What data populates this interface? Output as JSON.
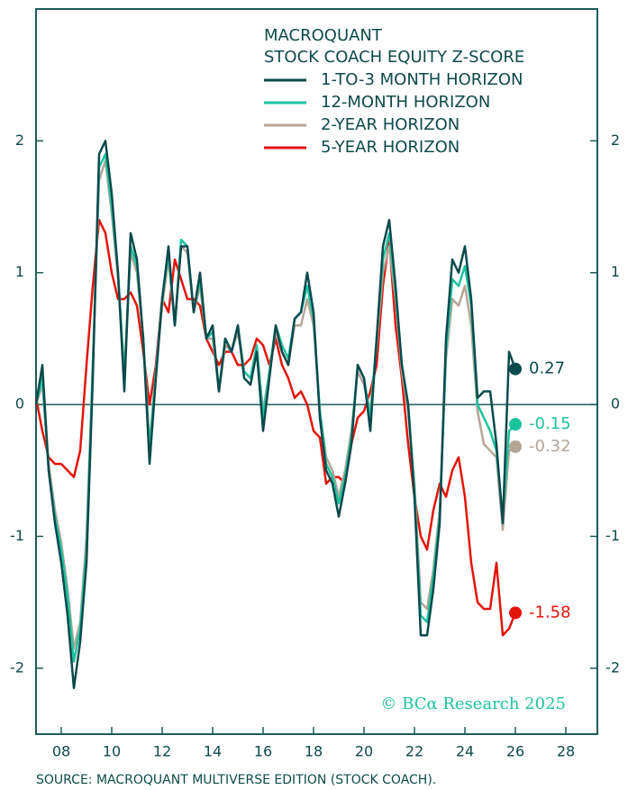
{
  "chart_data": {
    "type": "line",
    "title": [
      "MACROQUANT",
      "STOCK COACH EQUITY Z-SCORE"
    ],
    "source": "SOURCE: MACROQUANT MULTIVERSE EDITION (STOCK COACH).",
    "watermark": "© BCα Research 2025",
    "xlim": [
      2007,
      2029.25
    ],
    "xticks": [
      {
        "value": 2008,
        "label": "08"
      },
      {
        "value": 2010,
        "label": "10"
      },
      {
        "value": 2012,
        "label": "12"
      },
      {
        "value": 2014,
        "label": "14"
      },
      {
        "value": 2016,
        "label": "16"
      },
      {
        "value": 2018,
        "label": "18"
      },
      {
        "value": 2020,
        "label": "20"
      },
      {
        "value": 2022,
        "label": "22"
      },
      {
        "value": 2024,
        "label": "24"
      },
      {
        "value": 2026,
        "label": "26"
      },
      {
        "value": 2028,
        "label": "28"
      }
    ],
    "ylim": [
      -2.5,
      3
    ],
    "yticks": [
      -2,
      -1,
      0,
      1,
      2
    ],
    "y2lim": [
      -2.5,
      3
    ],
    "y2ticks": [
      -2,
      -1,
      0,
      1,
      2
    ],
    "zero_line": true,
    "legend": "top-right",
    "x": [
      2007,
      2007.25,
      2007.5,
      2007.75,
      2008,
      2008.25,
      2008.5,
      2008.75,
      2009,
      2009.25,
      2009.5,
      2009.75,
      2010,
      2010.25,
      2010.5,
      2010.75,
      2011,
      2011.25,
      2011.5,
      2011.75,
      2012,
      2012.25,
      2012.5,
      2012.75,
      2013,
      2013.25,
      2013.5,
      2013.75,
      2014,
      2014.25,
      2014.5,
      2014.75,
      2015,
      2015.25,
      2015.5,
      2015.75,
      2016,
      2016.25,
      2016.5,
      2016.75,
      2017,
      2017.25,
      2017.5,
      2017.75,
      2018,
      2018.25,
      2018.5,
      2018.75,
      2019,
      2019.25,
      2019.5,
      2019.75,
      2020,
      2020.25,
      2020.5,
      2020.75,
      2021,
      2021.25,
      2021.5,
      2021.75,
      2022,
      2022.25,
      2022.5,
      2022.75,
      2023,
      2023.25,
      2023.5,
      2023.75,
      2024,
      2024.25,
      2024.5,
      2024.75,
      2025,
      2025.25,
      2025.5,
      2025.75,
      2026
    ],
    "series": [
      {
        "name": "1-TO-3 MONTH HORIZON",
        "color": "#0b4a4c",
        "values": [
          0.0,
          0.3,
          -0.5,
          -0.9,
          -1.2,
          -1.6,
          -2.15,
          -1.8,
          -1.2,
          0.2,
          1.9,
          2.0,
          1.6,
          1.0,
          0.1,
          1.3,
          1.1,
          0.5,
          -0.45,
          0.2,
          0.8,
          1.2,
          0.6,
          1.2,
          1.2,
          0.7,
          1.0,
          0.5,
          0.6,
          0.1,
          0.5,
          0.4,
          0.6,
          0.2,
          0.15,
          0.4,
          -0.2,
          0.2,
          0.6,
          0.4,
          0.3,
          0.65,
          0.7,
          1.0,
          0.7,
          -0.1,
          -0.5,
          -0.6,
          -0.85,
          -0.6,
          -0.3,
          0.3,
          0.2,
          -0.2,
          0.5,
          1.2,
          1.4,
          0.9,
          0.3,
          0.0,
          -0.7,
          -1.75,
          -1.75,
          -1.4,
          -0.9,
          0.5,
          1.1,
          1.0,
          1.2,
          0.8,
          0.05,
          0.1,
          0.1,
          -0.3,
          -0.9,
          0.4,
          0.27
        ]
      },
      {
        "name": "12-MONTH HORIZON",
        "color": "#1dc39e",
        "values": [
          0.0,
          0.2,
          -0.5,
          -0.85,
          -1.1,
          -1.45,
          -1.95,
          -1.7,
          -1.1,
          0.3,
          1.8,
          1.9,
          1.5,
          1.0,
          0.2,
          1.2,
          1.05,
          0.5,
          -0.35,
          0.25,
          0.8,
          1.15,
          0.6,
          1.25,
          1.2,
          0.7,
          0.95,
          0.5,
          0.55,
          0.1,
          0.5,
          0.4,
          0.6,
          0.25,
          0.2,
          0.45,
          -0.1,
          0.25,
          0.6,
          0.45,
          0.35,
          0.65,
          0.7,
          0.9,
          0.65,
          -0.05,
          -0.45,
          -0.55,
          -0.75,
          -0.55,
          -0.25,
          0.3,
          0.2,
          -0.1,
          0.5,
          1.1,
          1.3,
          0.85,
          0.3,
          0.0,
          -0.65,
          -1.6,
          -1.65,
          -1.3,
          -0.85,
          0.4,
          0.95,
          0.9,
          1.05,
          0.75,
          0.0,
          -0.1,
          -0.2,
          -0.35,
          -0.85,
          -0.2,
          -0.15
        ]
      },
      {
        "name": "2-YEAR HORIZON",
        "color": "#b6a597",
        "values": [
          0.0,
          0.15,
          -0.45,
          -0.8,
          -1.05,
          -1.4,
          -1.85,
          -1.65,
          -1.0,
          0.3,
          1.7,
          1.85,
          1.45,
          0.95,
          0.25,
          1.15,
          1.0,
          0.5,
          -0.3,
          0.25,
          0.75,
          1.1,
          0.6,
          1.2,
          1.15,
          0.7,
          0.9,
          0.5,
          0.5,
          0.1,
          0.45,
          0.4,
          0.55,
          0.25,
          0.2,
          0.4,
          -0.05,
          0.25,
          0.55,
          0.4,
          0.3,
          0.6,
          0.6,
          0.8,
          0.6,
          -0.05,
          -0.4,
          -0.5,
          -0.7,
          -0.5,
          -0.2,
          0.25,
          0.15,
          -0.05,
          0.45,
          1.0,
          1.2,
          0.8,
          0.25,
          -0.05,
          -0.6,
          -1.5,
          -1.55,
          -1.25,
          -0.8,
          0.35,
          0.8,
          0.75,
          0.9,
          0.6,
          -0.05,
          -0.3,
          -0.35,
          -0.4,
          -0.95,
          -0.35,
          -0.32
        ]
      },
      {
        "name": "5-YEAR HORIZON",
        "color": "#e3140c",
        "values": [
          0.05,
          -0.2,
          -0.4,
          -0.45,
          -0.45,
          -0.5,
          -0.55,
          -0.35,
          0.3,
          0.9,
          1.4,
          1.3,
          1.0,
          0.8,
          0.8,
          0.85,
          0.75,
          0.4,
          0.0,
          0.3,
          0.8,
          0.7,
          1.1,
          0.95,
          0.8,
          0.8,
          0.75,
          0.5,
          0.4,
          0.3,
          0.4,
          0.4,
          0.3,
          0.3,
          0.35,
          0.5,
          0.45,
          0.3,
          0.5,
          0.3,
          0.2,
          0.05,
          0.1,
          0.0,
          -0.2,
          -0.25,
          -0.6,
          -0.55,
          -0.55,
          -0.6,
          -0.3,
          -0.1,
          -0.05,
          0.1,
          0.3,
          0.9,
          1.25,
          0.6,
          0.2,
          -0.3,
          -0.7,
          -1.0,
          -1.1,
          -0.8,
          -0.6,
          -0.7,
          -0.5,
          -0.4,
          -0.7,
          -1.2,
          -1.5,
          -1.55,
          -1.55,
          -1.2,
          -1.75,
          -1.7,
          -1.58
        ]
      }
    ]
  }
}
